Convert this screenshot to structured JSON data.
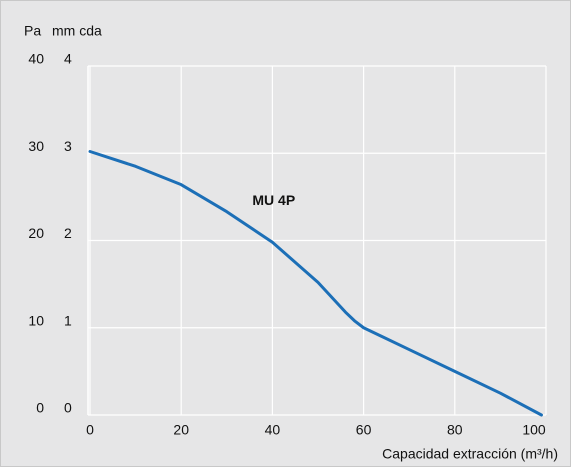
{
  "chart_data": {
    "type": "line",
    "y_label": "Pa",
    "y2_label": "mm cda",
    "x_label": "Capacidad extracción (m³/h)",
    "x": [
      0,
      10,
      20,
      30,
      40,
      50,
      56,
      58,
      60,
      70,
      80,
      90,
      99
    ],
    "series": [
      {
        "name": "MU 4P",
        "color": "#1c6fb7",
        "values": [
          30.2,
          28.5,
          26.4,
          23.3,
          19.8,
          15.2,
          11.8,
          10.8,
          10,
          7.5,
          5,
          2.5,
          0
        ]
      }
    ],
    "xlim": [
      0,
      100
    ],
    "xticks": [
      0,
      20,
      40,
      60,
      80,
      100
    ],
    "ylim": [
      0,
      40
    ],
    "yticks": [
      0,
      10,
      20,
      30,
      40
    ],
    "y2lim": [
      0,
      4
    ],
    "y2ticks": [
      0,
      1,
      2,
      3,
      4
    ],
    "grid": true
  }
}
